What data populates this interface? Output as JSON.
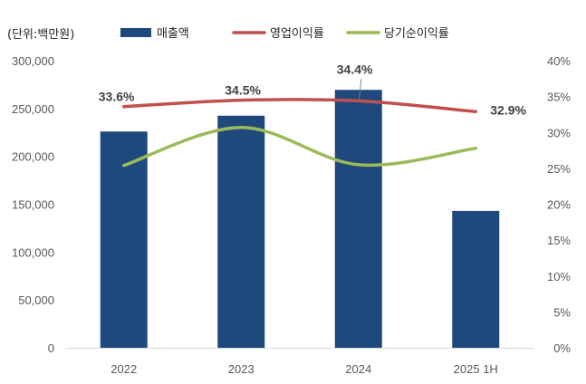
{
  "unit_label": "(단위:백만원)",
  "chart_data": {
    "type": "bar",
    "categories": [
      "2022",
      "2023",
      "2024",
      "2025 1H"
    ],
    "y_left": {
      "ylim": [
        0,
        300000
      ],
      "ticks": [
        "0",
        "50,000",
        "100,000",
        "150,000",
        "200,000",
        "250,000",
        "300,000"
      ]
    },
    "y_right": {
      "ylim": [
        0,
        40
      ],
      "ticks": [
        "0%",
        "5%",
        "10%",
        "15%",
        "20%",
        "25%",
        "30%",
        "35%",
        "40%"
      ]
    },
    "series": [
      {
        "name": "매출액",
        "kind": "bar",
        "axis": "left",
        "color": "#1f497d",
        "values": [
          226000,
          242500,
          269500,
          143000
        ]
      },
      {
        "name": "영업이익률",
        "kind": "line",
        "axis": "right",
        "color": "#c0504d",
        "values": [
          33.6,
          34.5,
          34.4,
          32.9
        ],
        "labels": [
          "33.6%",
          "34.5%",
          "34.4%",
          "32.9%"
        ]
      },
      {
        "name": "당기순이익률",
        "kind": "line",
        "axis": "right",
        "color": "#9bbb59",
        "values": [
          25.4,
          30.7,
          25.5,
          27.8
        ]
      }
    ],
    "legend": "top",
    "grid": false
  }
}
